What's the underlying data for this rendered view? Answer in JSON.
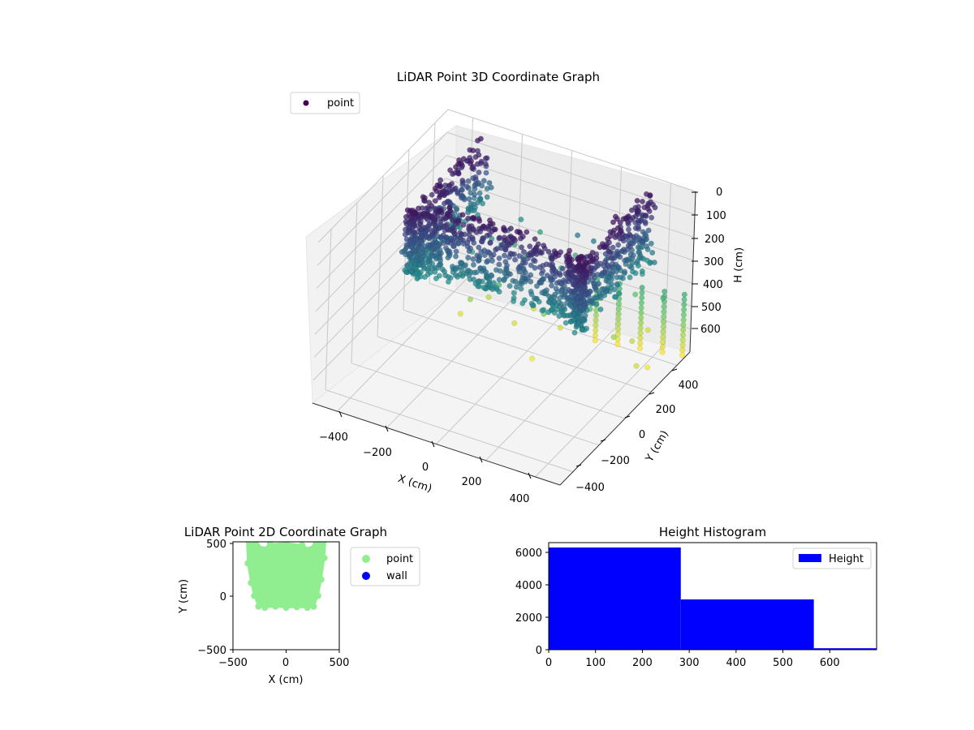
{
  "chart_data": [
    {
      "type": "scatter",
      "title": "LiDAR Point 3D Coordinate Graph",
      "xlabel": "X (cm)",
      "ylabel": "Y (cm)",
      "zlabel": "H (cm)",
      "xticks": [
        "−400",
        "−200",
        "0",
        "200",
        "400"
      ],
      "yticks": [
        "−400",
        "−200",
        "0",
        "200",
        "400"
      ],
      "zticks": [
        "0",
        "100",
        "200",
        "300",
        "400",
        "500",
        "600"
      ],
      "xlim": [
        -500,
        500
      ],
      "ylim": [
        -500,
        500
      ],
      "zlim": [
        0,
        700
      ],
      "z_inverted": true,
      "grid": true,
      "legend_position": "top-left",
      "colormap": "viridis",
      "colormap_stops": [
        "#440154",
        "#3b528b",
        "#21918c",
        "#5ec962",
        "#fde725"
      ],
      "series": [
        {
          "name": "point",
          "color": "#440154"
        }
      ],
      "approx_point_clusters": [
        {
          "desc": "dense U-shaped shell",
          "x_range": [
            -350,
            350
          ],
          "y_range": [
            -120,
            480
          ],
          "h_range": [
            0,
            350
          ]
        },
        {
          "desc": "vertical point columns",
          "x_range": [
            150,
            500
          ],
          "y_range": [
            300,
            500
          ],
          "h_range": [
            400,
            700
          ]
        }
      ]
    },
    {
      "type": "scatter",
      "title": "LiDAR Point 2D Coordinate Graph",
      "xlabel": "X (cm)",
      "ylabel": "Y (cm)",
      "xticks": [
        "−500",
        "0",
        "500"
      ],
      "yticks": [
        "500",
        "0",
        "−500"
      ],
      "xlim": [
        -500,
        500
      ],
      "ylim": [
        -500,
        500
      ],
      "legend_position": "outside-right",
      "series": [
        {
          "name": "point",
          "color": "#90ee90"
        },
        {
          "name": "wall",
          "color": "#0000ff"
        }
      ],
      "region_approx": {
        "shape": "U-shaped footprint",
        "x_range": [
          -370,
          370
        ],
        "y_range": [
          -110,
          500
        ]
      }
    },
    {
      "type": "bar",
      "title": "Height Histogram",
      "xlabel": "",
      "ylabel": "",
      "xticks": [
        "0",
        "100",
        "200",
        "300",
        "400",
        "500",
        "600"
      ],
      "yticks": [
        "0",
        "2000",
        "4000",
        "6000"
      ],
      "xlim": [
        0,
        700
      ],
      "ylim": [
        0,
        6600
      ],
      "legend_position": "top-right",
      "series": [
        {
          "name": "Height",
          "color": "#0000ff"
        }
      ],
      "bins": [
        {
          "x0": 0,
          "x1": 282,
          "count": 6300
        },
        {
          "x0": 282,
          "x1": 566,
          "count": 3100
        },
        {
          "x0": 566,
          "x1": 700,
          "count": 90
        }
      ]
    }
  ]
}
